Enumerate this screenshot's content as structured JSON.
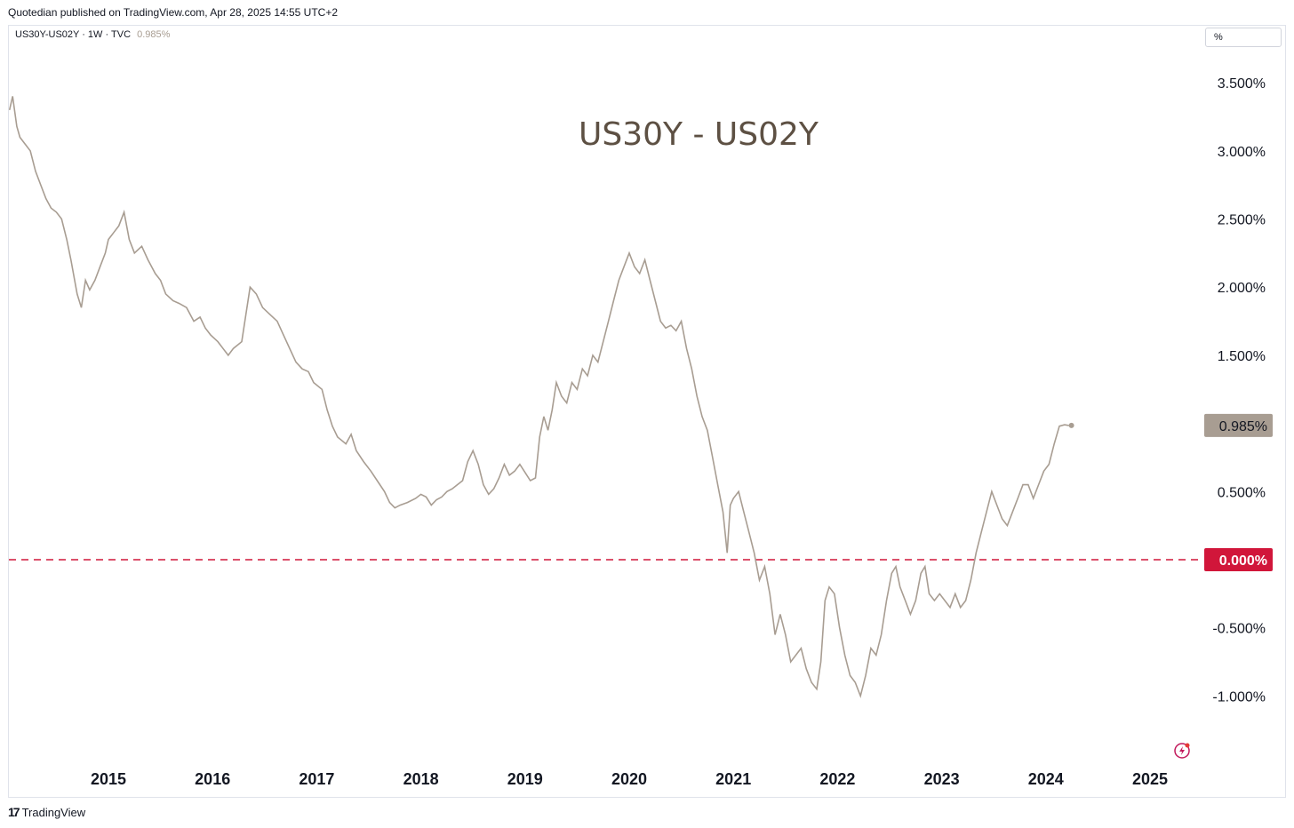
{
  "header": {
    "attribution": "Quotedian published on TradingView.com, Apr 28, 2025 14:55 UTC+2",
    "symbol": "US30Y-US02Y · 1W · TVC",
    "last_value": "0.985%",
    "unit_label": "%"
  },
  "footer": {
    "brand": "TradingView",
    "brand_icon": "tradingview-logo-icon"
  },
  "colors": {
    "line": "#a89d92",
    "zero_line": "#d1163a",
    "title": "#5d5043",
    "last_badge": "#a89d92"
  },
  "chart_data": {
    "type": "line",
    "title": "US30Y - US02Y",
    "xlabel": "",
    "ylabel": "",
    "x_tick_labels": [
      "2015",
      "2016",
      "2017",
      "2018",
      "2019",
      "2020",
      "2021",
      "2022",
      "2023",
      "2024",
      "2025"
    ],
    "y_tick_labels": [
      "3.500%",
      "3.000%",
      "2.500%",
      "2.000%",
      "1.500%",
      "0.500%",
      "-0.500%",
      "-1.000%"
    ],
    "ylim": [
      -1.4,
      3.8
    ],
    "xlim": [
      2014.0,
      2026.0
    ],
    "reference_line": {
      "value": 0.0,
      "label": "0.000%"
    },
    "last_point": {
      "value": 0.985,
      "label": "0.985%"
    },
    "grid": false,
    "series": [
      {
        "points": [
          [
            2014.05,
            3.3
          ],
          [
            2014.08,
            3.4
          ],
          [
            2014.12,
            3.18
          ],
          [
            2014.15,
            3.1
          ],
          [
            2014.2,
            3.05
          ],
          [
            2014.25,
            3.0
          ],
          [
            2014.3,
            2.85
          ],
          [
            2014.35,
            2.75
          ],
          [
            2014.4,
            2.65
          ],
          [
            2014.45,
            2.58
          ],
          [
            2014.5,
            2.55
          ],
          [
            2014.55,
            2.5
          ],
          [
            2014.6,
            2.35
          ],
          [
            2014.64,
            2.2
          ],
          [
            2014.7,
            1.95
          ],
          [
            2014.74,
            1.85
          ],
          [
            2014.78,
            2.05
          ],
          [
            2014.82,
            1.98
          ],
          [
            2014.87,
            2.05
          ],
          [
            2014.92,
            2.15
          ],
          [
            2014.97,
            2.25
          ],
          [
            2015.0,
            2.35
          ],
          [
            2015.05,
            2.4
          ],
          [
            2015.1,
            2.45
          ],
          [
            2015.15,
            2.55
          ],
          [
            2015.2,
            2.35
          ],
          [
            2015.25,
            2.25
          ],
          [
            2015.32,
            2.3
          ],
          [
            2015.38,
            2.2
          ],
          [
            2015.45,
            2.1
          ],
          [
            2015.5,
            2.05
          ],
          [
            2015.55,
            1.95
          ],
          [
            2015.62,
            1.9
          ],
          [
            2015.68,
            1.88
          ],
          [
            2015.75,
            1.85
          ],
          [
            2015.82,
            1.75
          ],
          [
            2015.88,
            1.78
          ],
          [
            2015.93,
            1.7
          ],
          [
            2015.98,
            1.65
          ],
          [
            2016.05,
            1.6
          ],
          [
            2016.1,
            1.55
          ],
          [
            2016.15,
            1.5
          ],
          [
            2016.2,
            1.55
          ],
          [
            2016.28,
            1.6
          ],
          [
            2016.32,
            1.8
          ],
          [
            2016.36,
            2.0
          ],
          [
            2016.42,
            1.95
          ],
          [
            2016.48,
            1.85
          ],
          [
            2016.55,
            1.8
          ],
          [
            2016.62,
            1.75
          ],
          [
            2016.68,
            1.65
          ],
          [
            2016.74,
            1.55
          ],
          [
            2016.8,
            1.45
          ],
          [
            2016.86,
            1.4
          ],
          [
            2016.92,
            1.38
          ],
          [
            2016.97,
            1.3
          ],
          [
            2017.05,
            1.25
          ],
          [
            2017.1,
            1.1
          ],
          [
            2017.15,
            0.98
          ],
          [
            2017.2,
            0.9
          ],
          [
            2017.28,
            0.85
          ],
          [
            2017.33,
            0.92
          ],
          [
            2017.38,
            0.8
          ],
          [
            2017.45,
            0.72
          ],
          [
            2017.52,
            0.65
          ],
          [
            2017.58,
            0.58
          ],
          [
            2017.65,
            0.5
          ],
          [
            2017.7,
            0.42
          ],
          [
            2017.75,
            0.38
          ],
          [
            2017.8,
            0.4
          ],
          [
            2017.87,
            0.42
          ],
          [
            2017.95,
            0.45
          ],
          [
            2018.0,
            0.48
          ],
          [
            2018.05,
            0.46
          ],
          [
            2018.1,
            0.4
          ],
          [
            2018.15,
            0.44
          ],
          [
            2018.2,
            0.46
          ],
          [
            2018.25,
            0.5
          ],
          [
            2018.3,
            0.52
          ],
          [
            2018.35,
            0.55
          ],
          [
            2018.4,
            0.58
          ],
          [
            2018.45,
            0.72
          ],
          [
            2018.5,
            0.8
          ],
          [
            2018.55,
            0.7
          ],
          [
            2018.6,
            0.55
          ],
          [
            2018.65,
            0.48
          ],
          [
            2018.7,
            0.52
          ],
          [
            2018.75,
            0.6
          ],
          [
            2018.8,
            0.7
          ],
          [
            2018.85,
            0.62
          ],
          [
            2018.9,
            0.65
          ],
          [
            2018.95,
            0.7
          ],
          [
            2019.0,
            0.64
          ],
          [
            2019.05,
            0.58
          ],
          [
            2019.1,
            0.6
          ],
          [
            2019.14,
            0.9
          ],
          [
            2019.18,
            1.05
          ],
          [
            2019.22,
            0.95
          ],
          [
            2019.26,
            1.1
          ],
          [
            2019.3,
            1.3
          ],
          [
            2019.35,
            1.2
          ],
          [
            2019.4,
            1.15
          ],
          [
            2019.45,
            1.3
          ],
          [
            2019.5,
            1.25
          ],
          [
            2019.55,
            1.4
          ],
          [
            2019.6,
            1.35
          ],
          [
            2019.65,
            1.5
          ],
          [
            2019.7,
            1.45
          ],
          [
            2019.75,
            1.6
          ],
          [
            2019.8,
            1.75
          ],
          [
            2019.85,
            1.9
          ],
          [
            2019.9,
            2.05
          ],
          [
            2019.95,
            2.15
          ],
          [
            2020.0,
            2.25
          ],
          [
            2020.05,
            2.15
          ],
          [
            2020.1,
            2.1
          ],
          [
            2020.15,
            2.2
          ],
          [
            2020.2,
            2.05
          ],
          [
            2020.25,
            1.9
          ],
          [
            2020.3,
            1.75
          ],
          [
            2020.35,
            1.7
          ],
          [
            2020.4,
            1.72
          ],
          [
            2020.45,
            1.68
          ],
          [
            2020.5,
            1.75
          ],
          [
            2020.55,
            1.55
          ],
          [
            2020.6,
            1.4
          ],
          [
            2020.65,
            1.2
          ],
          [
            2020.7,
            1.05
          ],
          [
            2020.75,
            0.95
          ],
          [
            2020.8,
            0.75
          ],
          [
            2020.85,
            0.55
          ],
          [
            2020.9,
            0.35
          ],
          [
            2020.94,
            0.05
          ],
          [
            2020.97,
            0.4
          ],
          [
            2021.0,
            0.45
          ],
          [
            2021.05,
            0.5
          ],
          [
            2021.1,
            0.35
          ],
          [
            2021.15,
            0.2
          ],
          [
            2021.2,
            0.05
          ],
          [
            2021.25,
            -0.15
          ],
          [
            2021.3,
            -0.05
          ],
          [
            2021.35,
            -0.25
          ],
          [
            2021.4,
            -0.55
          ],
          [
            2021.45,
            -0.4
          ],
          [
            2021.5,
            -0.55
          ],
          [
            2021.55,
            -0.75
          ],
          [
            2021.6,
            -0.7
          ],
          [
            2021.65,
            -0.65
          ],
          [
            2021.7,
            -0.8
          ],
          [
            2021.75,
            -0.9
          ],
          [
            2021.8,
            -0.95
          ],
          [
            2021.84,
            -0.75
          ],
          [
            2021.88,
            -0.3
          ],
          [
            2021.92,
            -0.2
          ],
          [
            2021.97,
            -0.25
          ],
          [
            2022.02,
            -0.5
          ],
          [
            2022.07,
            -0.7
          ],
          [
            2022.12,
            -0.85
          ],
          [
            2022.17,
            -0.9
          ],
          [
            2022.22,
            -1.0
          ],
          [
            2022.27,
            -0.85
          ],
          [
            2022.32,
            -0.65
          ],
          [
            2022.37,
            -0.7
          ],
          [
            2022.42,
            -0.55
          ],
          [
            2022.47,
            -0.3
          ],
          [
            2022.52,
            -0.1
          ],
          [
            2022.56,
            -0.05
          ],
          [
            2022.6,
            -0.2
          ],
          [
            2022.65,
            -0.3
          ],
          [
            2022.7,
            -0.4
          ],
          [
            2022.75,
            -0.3
          ],
          [
            2022.8,
            -0.1
          ],
          [
            2022.84,
            -0.05
          ],
          [
            2022.88,
            -0.25
          ],
          [
            2022.93,
            -0.3
          ],
          [
            2022.98,
            -0.25
          ],
          [
            2023.03,
            -0.3
          ],
          [
            2023.08,
            -0.35
          ],
          [
            2023.13,
            -0.25
          ],
          [
            2023.18,
            -0.35
          ],
          [
            2023.23,
            -0.3
          ],
          [
            2023.28,
            -0.15
          ],
          [
            2023.33,
            0.05
          ],
          [
            2023.38,
            0.2
          ],
          [
            2023.43,
            0.35
          ],
          [
            2023.48,
            0.5
          ],
          [
            2023.53,
            0.4
          ],
          [
            2023.58,
            0.3
          ],
          [
            2023.63,
            0.25
          ],
          [
            2023.68,
            0.35
          ],
          [
            2023.73,
            0.45
          ],
          [
            2023.78,
            0.55
          ],
          [
            2023.83,
            0.55
          ],
          [
            2023.88,
            0.45
          ],
          [
            2023.93,
            0.55
          ],
          [
            2023.98,
            0.65
          ],
          [
            2024.03,
            0.7
          ],
          [
            2024.08,
            0.85
          ],
          [
            2024.13,
            0.98
          ],
          [
            2024.18,
            0.99
          ],
          [
            2024.22,
            0.985
          ]
        ]
      }
    ]
  }
}
